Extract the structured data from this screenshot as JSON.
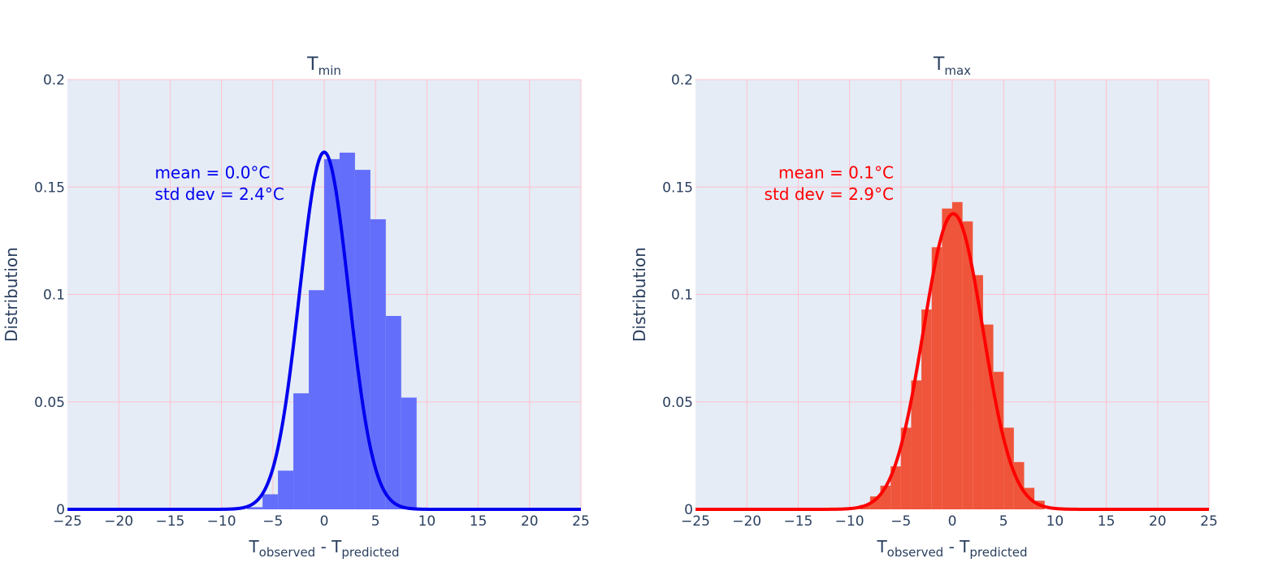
{
  "chart_data": [
    {
      "type": "histogram",
      "title": {
        "main": "T",
        "sub": "min"
      },
      "xlabel": {
        "t1": "T",
        "sub1": "observed",
        "sep": " - ",
        "t2": "T",
        "sub2": "predicted"
      },
      "ylabel": "Distribution",
      "xlim": [
        -25,
        25
      ],
      "ylim": [
        0,
        0.2
      ],
      "xticks": [
        -25,
        -20,
        -15,
        -10,
        -5,
        0,
        5,
        10,
        15,
        20,
        25
      ],
      "xtick_labels": [
        "−25",
        "−20",
        "−15",
        "−10",
        "−5",
        "0",
        "5",
        "10",
        "15",
        "20",
        "25"
      ],
      "yticks": [
        0,
        0.05,
        0.1,
        0.15,
        0.2
      ],
      "ytick_labels": [
        "0",
        "0.05",
        "0.1",
        "0.15",
        "0.2"
      ],
      "grid": true,
      "bar_color": "#636efa",
      "curve_color": "#0000ee",
      "bins": [
        {
          "x0": -7.5,
          "x1": -6.0,
          "value": 0.001
        },
        {
          "x0": -6.0,
          "x1": -4.5,
          "value": 0.007
        },
        {
          "x0": -4.5,
          "x1": -3.0,
          "value": 0.018
        },
        {
          "x0": -3.0,
          "x1": -1.5,
          "value": 0.054
        },
        {
          "x0": -1.5,
          "x1": 0.0,
          "value": 0.102
        },
        {
          "x0": 0.0,
          "x1": 1.5,
          "value": 0.163
        },
        {
          "x0": 1.5,
          "x1": 3.0,
          "value": 0.166
        },
        {
          "x0": 3.0,
          "x1": 4.5,
          "value": 0.158
        },
        {
          "x0": 4.5,
          "x1": 6.0,
          "value": 0.135
        },
        {
          "x0": 6.0,
          "x1": 7.5,
          "value": 0.09
        },
        {
          "x0": 7.5,
          "x1": 9.0,
          "value": 0.052
        }
      ],
      "curve": {
        "type": "normal",
        "mean": 0.0,
        "std": 2.4
      },
      "annotation": {
        "line1": "mean = 0.0°C",
        "line2": "std dev = 2.4°C",
        "color": "#0000ee",
        "anchor": "left",
        "x": -16.5,
        "y1": 0.154,
        "y2": 0.144
      }
    },
    {
      "type": "histogram",
      "title": {
        "main": "T",
        "sub": "max"
      },
      "xlabel": {
        "t1": "T",
        "sub1": "observed",
        "sep": " - ",
        "t2": "T",
        "sub2": "predicted"
      },
      "ylabel": "Distribution",
      "xlim": [
        -25,
        25
      ],
      "ylim": [
        0,
        0.2
      ],
      "xticks": [
        -25,
        -20,
        -15,
        -10,
        -5,
        0,
        5,
        10,
        15,
        20,
        25
      ],
      "xtick_labels": [
        "−25",
        "−20",
        "−15",
        "−10",
        "−5",
        "0",
        "5",
        "10",
        "15",
        "20",
        "25"
      ],
      "yticks": [
        0,
        0.05,
        0.1,
        0.15,
        0.2
      ],
      "ytick_labels": [
        "0",
        "0.05",
        "0.1",
        "0.15",
        "0.2"
      ],
      "grid": true,
      "bar_color": "#ef553b",
      "curve_color": "#ff0000",
      "bins": [
        {
          "x0": -9.0,
          "x1": -8.0,
          "value": 0.002
        },
        {
          "x0": -8.0,
          "x1": -7.0,
          "value": 0.006
        },
        {
          "x0": -7.0,
          "x1": -6.0,
          "value": 0.011
        },
        {
          "x0": -6.0,
          "x1": -5.0,
          "value": 0.02
        },
        {
          "x0": -5.0,
          "x1": -4.0,
          "value": 0.038
        },
        {
          "x0": -4.0,
          "x1": -3.0,
          "value": 0.06
        },
        {
          "x0": -3.0,
          "x1": -2.0,
          "value": 0.093
        },
        {
          "x0": -2.0,
          "x1": -1.0,
          "value": 0.122
        },
        {
          "x0": -1.0,
          "x1": 0.0,
          "value": 0.14
        },
        {
          "x0": 0.0,
          "x1": 1.0,
          "value": 0.143
        },
        {
          "x0": 1.0,
          "x1": 2.0,
          "value": 0.134
        },
        {
          "x0": 2.0,
          "x1": 3.0,
          "value": 0.109
        },
        {
          "x0": 3.0,
          "x1": 4.0,
          "value": 0.086
        },
        {
          "x0": 4.0,
          "x1": 5.0,
          "value": 0.064
        },
        {
          "x0": 5.0,
          "x1": 6.0,
          "value": 0.038
        },
        {
          "x0": 6.0,
          "x1": 7.0,
          "value": 0.022
        },
        {
          "x0": 7.0,
          "x1": 8.0,
          "value": 0.01
        },
        {
          "x0": 8.0,
          "x1": 9.0,
          "value": 0.004
        }
      ],
      "curve": {
        "type": "normal",
        "mean": 0.1,
        "std": 2.9
      },
      "annotation": {
        "line1": "mean = 0.1°C",
        "line2": "std dev = 2.9°C",
        "color": "#ff0000",
        "anchor": "right",
        "x": -5.7,
        "y1": 0.154,
        "y2": 0.144
      }
    }
  ]
}
